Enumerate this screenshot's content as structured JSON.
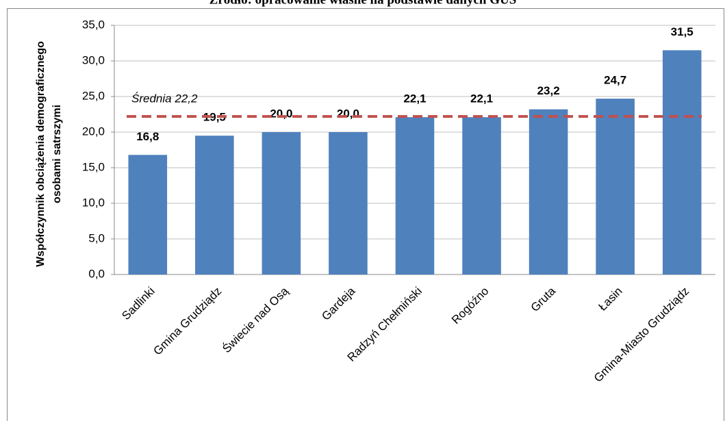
{
  "chart_data": {
    "type": "bar",
    "title": "Źródło: opracowanie własne na podstawie danych GUS",
    "ylabel": [
      "Współczynnik obciążenia demograficznego",
      "osobami satrszymi"
    ],
    "categories": [
      "Sadlinki",
      "Gmina Grudziądz",
      "Świecie nad Osą",
      "Gardeja",
      "Radzyń Chełmiński",
      "Rogóźno",
      "Gruta",
      "Łasin",
      "Gmina-Miasto Grudziądz"
    ],
    "values": [
      16.8,
      19.5,
      20.0,
      20.0,
      22.1,
      22.1,
      23.2,
      24.7,
      31.5
    ],
    "value_labels": [
      "16,8",
      "19,5",
      "20,0",
      "20,0",
      "22,1",
      "22,1",
      "23,2",
      "24,7",
      "31,5"
    ],
    "color": "#4f81bd",
    "ylim": [
      0,
      35
    ],
    "yticks": [
      {
        "value": 0,
        "label": "0,0"
      },
      {
        "value": 5,
        "label": "5,0"
      },
      {
        "value": 10,
        "label": "10,0"
      },
      {
        "value": 15,
        "label": "15,0"
      },
      {
        "value": 20,
        "label": "20,0"
      },
      {
        "value": 25,
        "label": "25,0"
      },
      {
        "value": 30,
        "label": "30,0"
      },
      {
        "value": 35,
        "label": "35,0"
      }
    ],
    "grid": true,
    "average": {
      "value": 22.2,
      "label": "Średnia 22,2",
      "color": "#c0504d"
    }
  }
}
